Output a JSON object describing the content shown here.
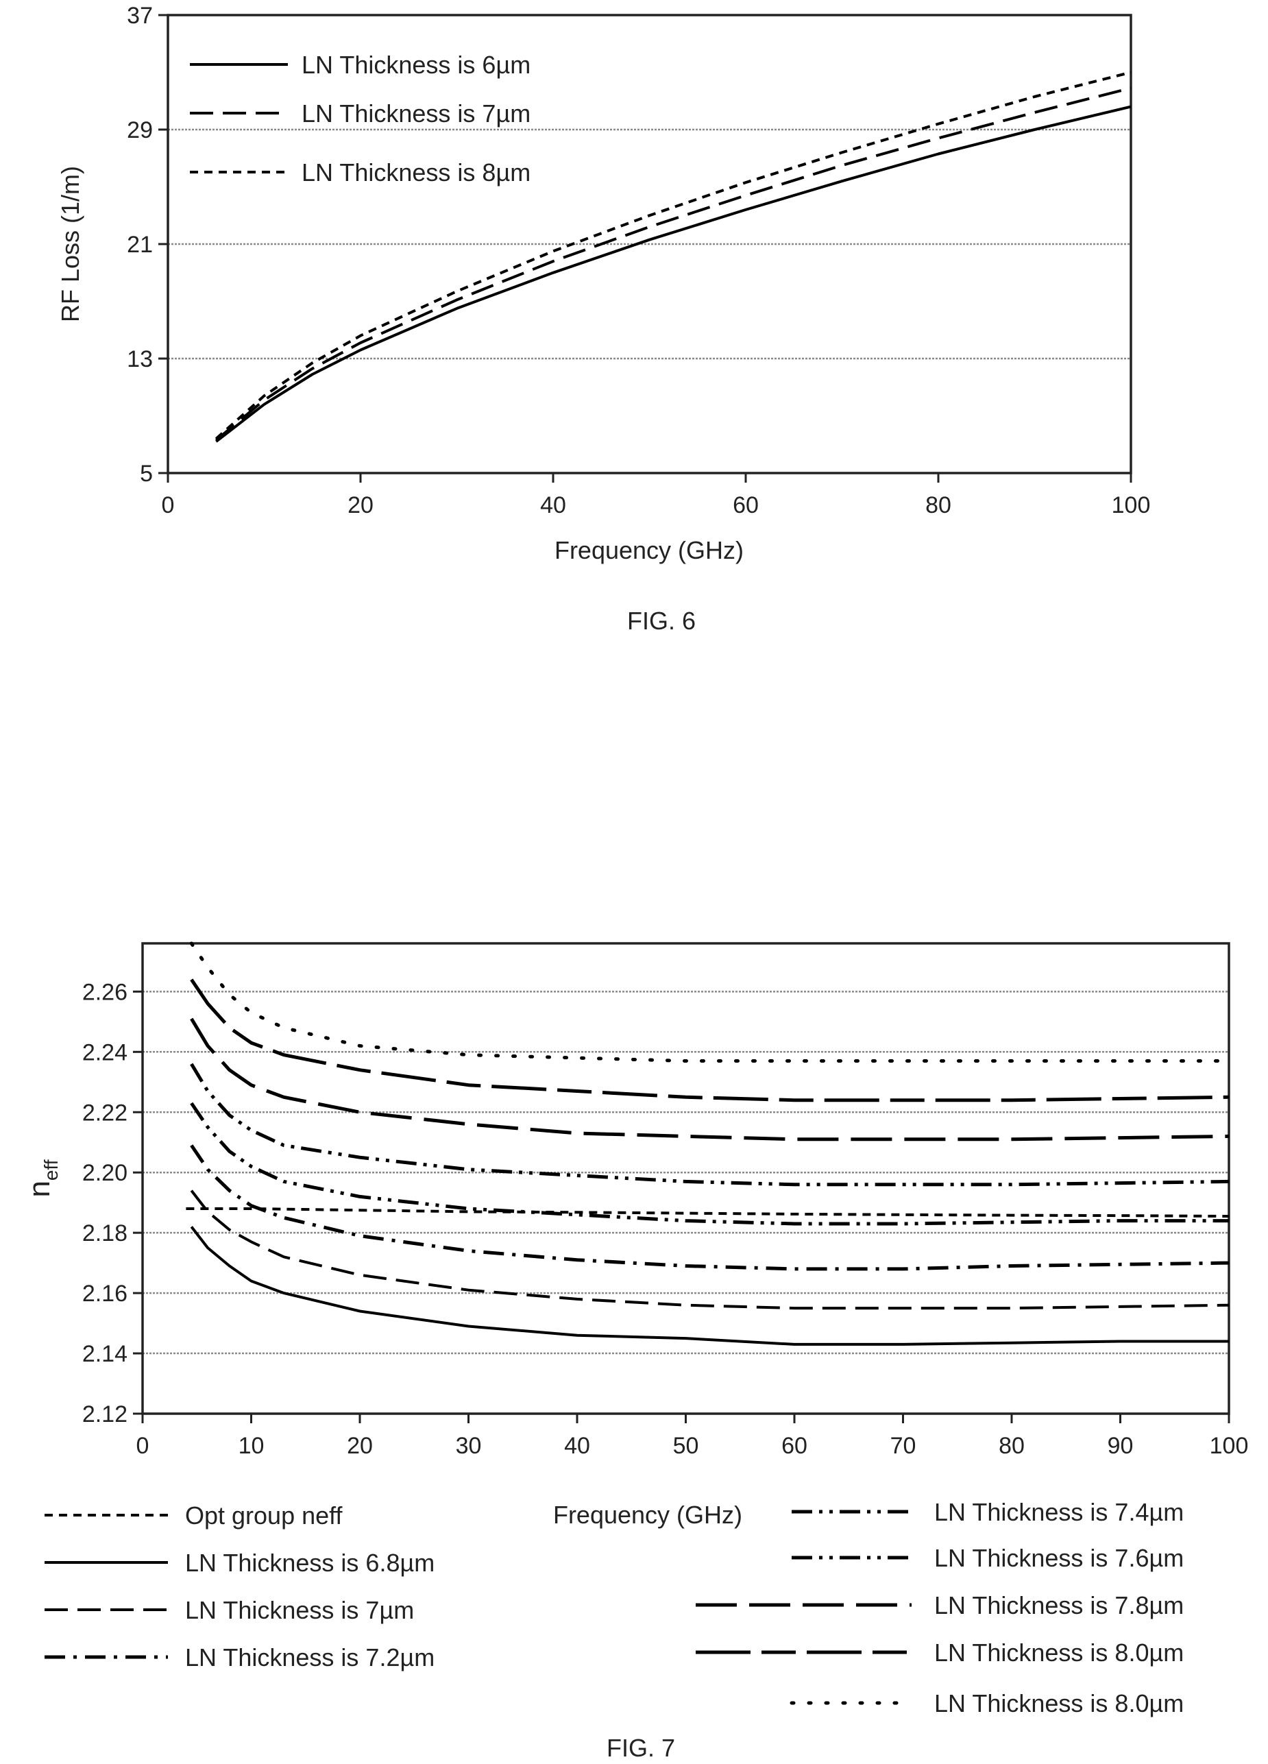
{
  "chart_data": [
    {
      "type": "line",
      "caption": "FIG. 6",
      "xlabel": "Frequency (GHz)",
      "ylabel": "RF Loss (1/m)",
      "xlim": [
        0,
        100
      ],
      "ylim": [
        5,
        37
      ],
      "xticks": [
        "0",
        "20",
        "40",
        "60",
        "80",
        "100"
      ],
      "yticks": [
        "5",
        "13",
        "21",
        "29",
        "37"
      ],
      "grid": "horizontal",
      "legend_position": "top-left",
      "series": [
        {
          "name": "LN Thickness is 6µm",
          "style": "solid",
          "x": [
            5,
            10,
            15,
            20,
            30,
            40,
            50,
            60,
            70,
            80,
            90,
            100
          ],
          "y": [
            7.2,
            9.8,
            11.9,
            13.6,
            16.5,
            19.0,
            21.3,
            23.4,
            25.4,
            27.3,
            29.0,
            30.6
          ]
        },
        {
          "name": "LN Thickness is 7µm",
          "style": "dashed",
          "x": [
            5,
            10,
            15,
            20,
            30,
            40,
            50,
            60,
            70,
            80,
            90,
            100
          ],
          "y": [
            7.3,
            10.1,
            12.3,
            14.1,
            17.1,
            19.8,
            22.2,
            24.4,
            26.5,
            28.4,
            30.2,
            31.9
          ]
        },
        {
          "name": "LN Thickness is 8µm",
          "style": "short-dashed",
          "x": [
            5,
            10,
            15,
            20,
            30,
            40,
            50,
            60,
            70,
            80,
            90,
            100
          ],
          "y": [
            7.4,
            10.4,
            12.7,
            14.6,
            17.7,
            20.5,
            23.0,
            25.3,
            27.4,
            29.4,
            31.3,
            33.0
          ]
        }
      ]
    },
    {
      "type": "line",
      "caption": "FIG. 7",
      "xlabel": "Frequency (GHz)",
      "ylabel": "n",
      "ylabel_sub": "eff",
      "xlim": [
        0,
        100
      ],
      "ylim": [
        2.12,
        2.276
      ],
      "xticks": [
        "0",
        "10",
        "20",
        "30",
        "40",
        "50",
        "60",
        "70",
        "80",
        "90",
        "100"
      ],
      "yticks": [
        "2.12",
        "2.14",
        "2.16",
        "2.18",
        "2.20",
        "2.22",
        "2.24",
        "2.26"
      ],
      "grid": "horizontal",
      "legend_position": "bottom",
      "series": [
        {
          "name": "Opt group neff",
          "style": "short-dashed",
          "x": [
            4,
            10,
            20,
            30,
            40,
            50,
            60,
            70,
            80,
            90,
            100
          ],
          "y": [
            2.188,
            2.188,
            2.1875,
            2.187,
            2.1868,
            2.1865,
            2.1862,
            2.186,
            2.1858,
            2.1857,
            2.1855
          ]
        },
        {
          "name": "LN Thickness is 6.8µm",
          "style": "solid",
          "x": [
            4.5,
            6,
            8,
            10,
            13,
            20,
            30,
            40,
            50,
            60,
            70,
            80,
            90,
            100
          ],
          "y": [
            2.182,
            2.175,
            2.169,
            2.164,
            2.16,
            2.154,
            2.149,
            2.146,
            2.145,
            2.143,
            2.143,
            2.1435,
            2.144,
            2.144
          ]
        },
        {
          "name": "LN Thickness is 7µm",
          "style": "dashed",
          "x": [
            4.5,
            6,
            8,
            10,
            13,
            20,
            30,
            40,
            50,
            60,
            70,
            80,
            90,
            100
          ],
          "y": [
            2.194,
            2.187,
            2.181,
            2.177,
            2.172,
            2.166,
            2.161,
            2.158,
            2.156,
            2.155,
            2.155,
            2.155,
            2.1555,
            2.156
          ]
        },
        {
          "name": "LN Thickness is 7.2µm",
          "style": "dash-dot",
          "x": [
            4.5,
            6,
            8,
            10,
            13,
            20,
            30,
            40,
            50,
            60,
            70,
            80,
            90,
            100
          ],
          "y": [
            2.209,
            2.201,
            2.194,
            2.189,
            2.185,
            2.179,
            2.174,
            2.171,
            2.169,
            2.168,
            2.168,
            2.169,
            2.1695,
            2.17
          ]
        },
        {
          "name": "LN Thickness is 7.4µm",
          "style": "dash-dot-dot",
          "x": [
            4.5,
            6,
            8,
            10,
            13,
            20,
            30,
            40,
            50,
            60,
            70,
            80,
            90,
            100
          ],
          "y": [
            2.223,
            2.215,
            2.207,
            2.202,
            2.197,
            2.192,
            2.188,
            2.186,
            2.184,
            2.183,
            2.183,
            2.1835,
            2.184,
            2.184
          ]
        },
        {
          "name": "LN Thickness is 7.6µm",
          "style": "dash-dot-dot",
          "x": [
            4.5,
            6,
            8,
            10,
            13,
            20,
            30,
            40,
            50,
            60,
            70,
            80,
            90,
            100
          ],
          "y": [
            2.236,
            2.227,
            2.219,
            2.214,
            2.209,
            2.205,
            2.201,
            2.199,
            2.197,
            2.196,
            2.196,
            2.196,
            2.1965,
            2.197
          ]
        },
        {
          "name": "LN Thickness is 7.8µm",
          "style": "long-dash",
          "x": [
            4.5,
            6,
            8,
            10,
            13,
            20,
            30,
            40,
            50,
            60,
            70,
            80,
            90,
            100
          ],
          "y": [
            2.251,
            2.242,
            2.234,
            2.229,
            2.225,
            2.22,
            2.216,
            2.213,
            2.212,
            2.211,
            2.211,
            2.211,
            2.2115,
            2.212
          ]
        },
        {
          "name": "LN Thickness is 8.0µm",
          "style": "long-dash-solid",
          "x": [
            4.5,
            6,
            8,
            10,
            13,
            20,
            30,
            40,
            50,
            60,
            70,
            80,
            90,
            100
          ],
          "y": [
            2.264,
            2.256,
            2.248,
            2.243,
            2.239,
            2.234,
            2.229,
            2.227,
            2.225,
            2.224,
            2.224,
            2.224,
            2.2245,
            2.225
          ]
        },
        {
          "name": "LN Thickness is 8.0µm",
          "style": "dotted",
          "x": [
            4.5,
            6,
            8,
            10,
            13,
            20,
            30,
            40,
            50,
            60,
            70,
            80,
            90,
            100
          ],
          "y": [
            2.276,
            2.268,
            2.259,
            2.253,
            2.248,
            2.242,
            2.239,
            2.238,
            2.237,
            2.237,
            2.237,
            2.237,
            2.237,
            2.237
          ]
        }
      ]
    }
  ]
}
